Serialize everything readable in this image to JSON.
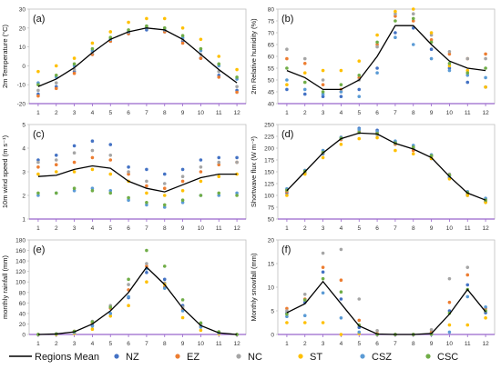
{
  "figure": {
    "legend": {
      "mean_label": "Regions Mean",
      "items": [
        {
          "label": "NZ",
          "color": "#4472C4"
        },
        {
          "label": "EZ",
          "color": "#ED7D31"
        },
        {
          "label": "NC",
          "color": "#A5A5A5"
        },
        {
          "label": "ST",
          "color": "#FFC000"
        },
        {
          "label": "CSZ",
          "color": "#5B9BD5"
        },
        {
          "label": "CSC",
          "color": "#70AD47"
        }
      ]
    }
  },
  "chart_data": [
    {
      "panel": "(a)",
      "type": "line",
      "ylabel": "2m Temperature (°C)",
      "ylim": [
        -20,
        30
      ],
      "yticks": [
        -20,
        -10,
        0,
        10,
        20,
        30
      ],
      "x": [
        1,
        2,
        3,
        4,
        5,
        6,
        7,
        8,
        9,
        10,
        11,
        12
      ],
      "mean": [
        -11,
        -7,
        -1,
        7,
        14,
        18,
        20,
        19,
        14,
        6,
        -2,
        -9
      ],
      "series": [
        {
          "name": "NZ",
          "values": [
            -15,
            -11,
            -3,
            6,
            13,
            17,
            19,
            18,
            13,
            4,
            -5,
            -13
          ]
        },
        {
          "name": "EZ",
          "values": [
            -16,
            -12,
            -4,
            6,
            13,
            17,
            20,
            18,
            12,
            4,
            -6,
            -14
          ]
        },
        {
          "name": "NC",
          "values": [
            -13,
            -9,
            -2,
            7,
            14,
            18,
            21,
            20,
            14,
            6,
            -3,
            -11
          ]
        },
        {
          "name": "ST",
          "values": [
            -3,
            0,
            4,
            12,
            18,
            23,
            25,
            25,
            20,
            14,
            5,
            -2
          ]
        },
        {
          "name": "CSZ",
          "values": [
            -9,
            -6,
            0,
            8,
            14,
            18,
            20,
            19,
            15,
            8,
            0,
            -7
          ]
        },
        {
          "name": "CSC",
          "values": [
            -10,
            -5,
            1,
            9,
            15,
            19,
            21,
            20,
            16,
            9,
            1,
            -6
          ]
        }
      ]
    },
    {
      "panel": "(b)",
      "type": "line",
      "ylabel": "2m Relative humidity (%)",
      "ylim": [
        40,
        80
      ],
      "yticks": [
        40,
        45,
        50,
        55,
        60,
        65,
        70,
        75,
        80
      ],
      "x": [
        1,
        2,
        3,
        4,
        5,
        6,
        7,
        8,
        9,
        10,
        11,
        12
      ],
      "mean": [
        54,
        51,
        46,
        46,
        50,
        60,
        73,
        73,
        65,
        58,
        55,
        54
      ],
      "series": [
        {
          "name": "NZ",
          "values": [
            46,
            44,
            43,
            43,
            46,
            55,
            70,
            72,
            63,
            55,
            49,
            47
          ]
        },
        {
          "name": "EZ",
          "values": [
            59,
            57,
            48,
            46,
            51,
            65,
            77,
            75,
            67,
            61,
            59,
            61
          ]
        },
        {
          "name": "NC",
          "values": [
            63,
            59,
            50,
            45,
            50,
            64,
            78,
            78,
            69,
            62,
            59,
            59
          ]
        },
        {
          "name": "ST",
          "values": [
            48,
            53,
            54,
            54,
            58,
            69,
            79,
            80,
            70,
            56,
            54,
            47
          ]
        },
        {
          "name": "CSZ",
          "values": [
            50,
            46,
            44,
            45,
            43,
            53,
            68,
            65,
            59,
            54,
            52,
            51
          ]
        },
        {
          "name": "CSC",
          "values": [
            55,
            49,
            45,
            48,
            52,
            66,
            75,
            76,
            66,
            57,
            53,
            55
          ]
        }
      ]
    },
    {
      "panel": "(c)",
      "type": "line",
      "ylabel": "10m wind speed (m s⁻¹)",
      "ylim": [
        1,
        5
      ],
      "yticks": [
        1,
        2,
        3,
        4,
        5
      ],
      "x": [
        1,
        2,
        3,
        4,
        5,
        6,
        7,
        8,
        9,
        10,
        11,
        12
      ],
      "mean": [
        2.8,
        2.85,
        3.1,
        3.25,
        3.15,
        2.6,
        2.3,
        2.15,
        2.45,
        2.75,
        2.9,
        2.9
      ],
      "series": [
        {
          "name": "NZ",
          "values": [
            3.5,
            3.7,
            4.1,
            4.3,
            4.15,
            3.2,
            3.1,
            2.9,
            3.1,
            3.5,
            3.6,
            3.6
          ]
        },
        {
          "name": "EZ",
          "values": [
            3.2,
            3.3,
            3.4,
            3.6,
            3.5,
            2.9,
            2.4,
            2.3,
            2.6,
            3.0,
            3.3,
            3.4
          ]
        },
        {
          "name": "NC",
          "values": [
            3.4,
            3.5,
            3.8,
            3.9,
            3.7,
            3.0,
            2.6,
            2.5,
            2.8,
            3.2,
            3.4,
            3.4
          ]
        },
        {
          "name": "ST",
          "values": [
            2.9,
            3.0,
            3.0,
            3.1,
            2.9,
            2.6,
            2.1,
            2.0,
            2.2,
            2.6,
            2.8,
            2.9
          ]
        },
        {
          "name": "CSZ",
          "values": [
            2.0,
            2.1,
            2.2,
            2.3,
            2.2,
            1.8,
            1.6,
            1.5,
            1.7,
            2.0,
            2.0,
            2.1
          ]
        },
        {
          "name": "CSC",
          "values": [
            2.1,
            2.1,
            2.3,
            2.2,
            2.1,
            1.9,
            1.7,
            1.6,
            1.8,
            2.0,
            2.1,
            2.0
          ]
        }
      ]
    },
    {
      "panel": "(d)",
      "type": "line",
      "ylabel": "Shortwave flux (W m⁻²)",
      "ylim": [
        50,
        250
      ],
      "yticks": [
        50,
        75,
        100,
        125,
        150,
        175,
        200,
        225,
        250
      ],
      "x": [
        1,
        2,
        3,
        4,
        5,
        6,
        7,
        8,
        9,
        10,
        11,
        12
      ],
      "mean": [
        110,
        150,
        190,
        220,
        232,
        230,
        210,
        198,
        180,
        140,
        105,
        90
      ],
      "series": [
        {
          "name": "NZ",
          "values": [
            105,
            148,
            188,
            223,
            242,
            238,
            213,
            200,
            178,
            138,
            100,
            86
          ]
        },
        {
          "name": "EZ",
          "values": [
            108,
            150,
            192,
            218,
            235,
            233,
            208,
            195,
            183,
            142,
            103,
            88
          ]
        },
        {
          "name": "NC",
          "values": [
            112,
            152,
            190,
            220,
            238,
            228,
            210,
            205,
            184,
            145,
            107,
            92
          ]
        },
        {
          "name": "ST",
          "values": [
            100,
            145,
            180,
            208,
            220,
            222,
            195,
            188,
            178,
            135,
            100,
            85
          ]
        },
        {
          "name": "CSZ",
          "values": [
            114,
            153,
            195,
            222,
            240,
            235,
            215,
            206,
            186,
            141,
            108,
            94
          ]
        },
        {
          "name": "CSC",
          "values": [
            111,
            151,
            191,
            221,
            233,
            231,
            211,
            202,
            184,
            143,
            106,
            90
          ]
        }
      ]
    },
    {
      "panel": "(e)",
      "type": "line",
      "ylabel": "monthly rainfall (mm)",
      "ylim": [
        0,
        180
      ],
      "yticks": [
        0,
        20,
        40,
        60,
        80,
        100,
        120,
        140,
        160,
        180
      ],
      "x": [
        1,
        2,
        3,
        4,
        5,
        6,
        7,
        8,
        9,
        10,
        11,
        12
      ],
      "mean": [
        0,
        1,
        5,
        20,
        45,
        80,
        128,
        95,
        50,
        17,
        3,
        0
      ],
      "series": [
        {
          "name": "NZ",
          "values": [
            0,
            1,
            4,
            18,
            40,
            70,
            118,
            105,
            55,
            20,
            4,
            0
          ]
        },
        {
          "name": "EZ",
          "values": [
            0,
            1,
            6,
            22,
            50,
            85,
            130,
            90,
            48,
            15,
            3,
            0
          ]
        },
        {
          "name": "NC",
          "values": [
            0,
            1,
            5,
            25,
            55,
            95,
            135,
            98,
            52,
            18,
            4,
            0
          ]
        },
        {
          "name": "ST",
          "values": [
            0,
            0,
            2,
            10,
            35,
            55,
            100,
            95,
            32,
            8,
            1,
            0
          ]
        },
        {
          "name": "CSZ",
          "values": [
            0,
            1,
            4,
            16,
            40,
            72,
            125,
            88,
            45,
            14,
            3,
            0
          ]
        },
        {
          "name": "CSC",
          "values": [
            0,
            1,
            6,
            24,
            52,
            105,
            160,
            130,
            66,
            22,
            5,
            0
          ]
        }
      ]
    },
    {
      "panel": "(f)",
      "type": "line",
      "ylabel": "Monthly snowfall (mm)",
      "ylim": [
        0,
        20
      ],
      "yticks": [
        0,
        5,
        10,
        15,
        20
      ],
      "x": [
        1,
        2,
        3,
        4,
        5,
        6,
        7,
        8,
        9,
        10,
        11,
        12
      ],
      "mean": [
        4.6,
        6.5,
        11.2,
        6.5,
        1.8,
        0.1,
        0,
        0,
        0.2,
        4.3,
        9.5,
        4.8
      ],
      "series": [
        {
          "name": "NZ",
          "values": [
            4.5,
            6.8,
            13.2,
            7.5,
            1.5,
            0,
            0,
            0,
            0.3,
            5.0,
            10.5,
            4.6
          ]
        },
        {
          "name": "EZ",
          "values": [
            5.5,
            7.5,
            14.2,
            11.5,
            3.0,
            0.2,
            0,
            0,
            0.5,
            6.8,
            12.6,
            5.5
          ]
        },
        {
          "name": "NC",
          "values": [
            5.0,
            8.5,
            17.2,
            18.0,
            7.5,
            0.8,
            0,
            0,
            1.0,
            11.8,
            14.2,
            5.0
          ]
        },
        {
          "name": "ST",
          "values": [
            2.5,
            2.5,
            2.5,
            0,
            0.2,
            0,
            0,
            0,
            0,
            2.0,
            2.0,
            3.5
          ]
        },
        {
          "name": "CSZ",
          "values": [
            3.8,
            4.0,
            8.8,
            3.5,
            0.5,
            0,
            0,
            0,
            0,
            0.5,
            8.0,
            5.8
          ]
        },
        {
          "name": "CSC",
          "values": [
            4.3,
            7.3,
            11.8,
            9.0,
            2.0,
            0,
            0,
            0,
            0.1,
            4.5,
            9.5,
            5.0
          ]
        }
      ]
    }
  ]
}
